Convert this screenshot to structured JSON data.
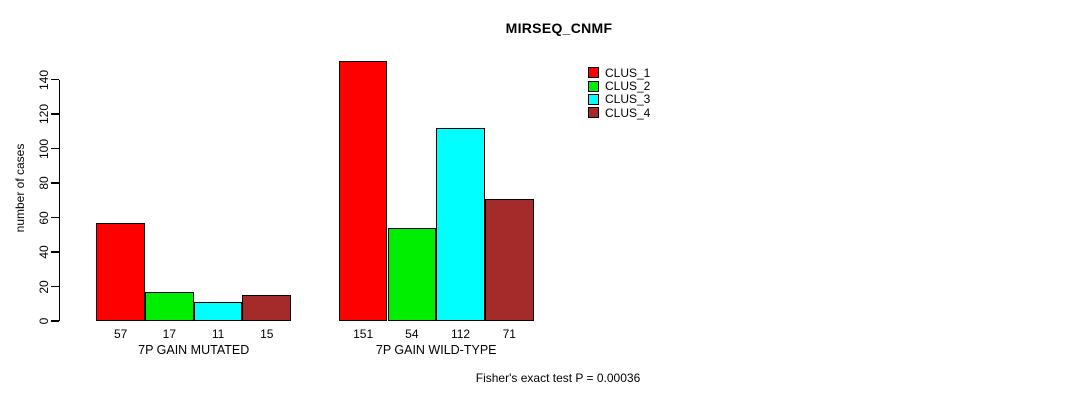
{
  "chart_data": {
    "type": "bar",
    "title": "MIRSEQ_CNMF",
    "xlabel": "",
    "ylabel": "number of cases",
    "ylim": [
      0,
      140
    ],
    "yticks": [
      0,
      20,
      40,
      60,
      80,
      100,
      120,
      140
    ],
    "grid": false,
    "legend_position": "top-right",
    "categories": [
      "7P GAIN MUTATED",
      "7P GAIN WILD-TYPE"
    ],
    "series": [
      {
        "name": "CLUS_1",
        "color": "#FF0000",
        "values": [
          57,
          151
        ]
      },
      {
        "name": "CLUS_2",
        "color": "#00EE00",
        "values": [
          17,
          54
        ]
      },
      {
        "name": "CLUS_3",
        "color": "#00FFFF",
        "values": [
          11,
          112
        ]
      },
      {
        "name": "CLUS_4",
        "color": "#A52A2A",
        "values": [
          15,
          71
        ]
      }
    ],
    "bar_value_labels_shown": true,
    "annotation": "Fisher's exact test P = 0.00036"
  }
}
